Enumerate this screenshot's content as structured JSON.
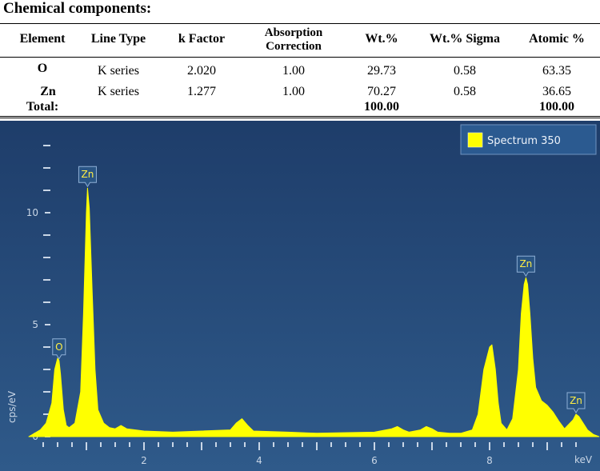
{
  "table": {
    "heading": "Chemical components:",
    "headers": {
      "element": "Element",
      "line_type": "Line Type",
      "k_factor": "k Factor",
      "absorption_1": "Absorption",
      "absorption_2": "Correction",
      "wt": "Wt.%",
      "wt_sigma": "Wt.% Sigma",
      "atomic": "Atomic %"
    },
    "rows": [
      {
        "element": "O",
        "line_type": "K series",
        "k_factor": "2.020",
        "absorption": "1.00",
        "wt": "29.73",
        "wt_sigma": "0.58",
        "atomic": "63.35"
      },
      {
        "element": "Zn",
        "line_type": "K series",
        "k_factor": "1.277",
        "absorption": "1.00",
        "wt": "70.27",
        "wt_sigma": "0.58",
        "atomic": "36.65"
      }
    ],
    "total": {
      "label": "Total:",
      "wt": "100.00",
      "atomic": "100.00"
    }
  },
  "colors": {
    "background_top": "#1e3d6a",
    "background_bottom": "#2f5a8a",
    "spectrum_fill": "#ffff00",
    "axis": "#c9d6e6",
    "peak_label": "#ffee44"
  },
  "chart_data": {
    "type": "area",
    "title": "",
    "xlabel": "keV",
    "ylabel": "cps/eV",
    "xlim": [
      0,
      9.5
    ],
    "ylim": [
      0,
      13.5
    ],
    "x_ticks": [
      2,
      4,
      6,
      8
    ],
    "y_ticks": [
      0,
      5,
      10
    ],
    "grid": false,
    "legend": {
      "position": "top-right",
      "entries": [
        "Spectrum 350"
      ]
    },
    "series": [
      {
        "name": "Spectrum 350",
        "x": [
          0.0,
          0.2,
          0.3,
          0.4,
          0.45,
          0.5,
          0.525,
          0.55,
          0.6,
          0.65,
          0.7,
          0.8,
          0.9,
          0.95,
          1.0,
          1.02,
          1.05,
          1.1,
          1.15,
          1.2,
          1.3,
          1.4,
          1.5,
          1.6,
          1.7,
          2.0,
          2.5,
          3.0,
          3.5,
          3.6,
          3.7,
          3.8,
          3.9,
          4.5,
          5.0,
          6.0,
          6.3,
          6.4,
          6.5,
          6.6,
          6.8,
          6.9,
          7.0,
          7.1,
          7.3,
          7.5,
          7.7,
          7.8,
          7.9,
          8.0,
          8.04,
          8.1,
          8.15,
          8.2,
          8.3,
          8.4,
          8.5,
          8.55,
          8.6,
          8.63,
          8.66,
          8.7,
          8.75,
          8.8,
          8.9,
          9.0,
          9.1,
          9.2,
          9.3,
          9.45,
          9.5,
          9.55,
          9.6,
          9.7,
          9.8,
          9.9
        ],
        "values": [
          0.0,
          0.3,
          0.6,
          1.5,
          3.0,
          3.5,
          3.4,
          2.8,
          1.2,
          0.5,
          0.4,
          0.6,
          2.0,
          5.5,
          10.0,
          11.1,
          10.2,
          6.5,
          3.0,
          1.2,
          0.6,
          0.4,
          0.35,
          0.5,
          0.35,
          0.25,
          0.2,
          0.25,
          0.3,
          0.6,
          0.8,
          0.5,
          0.25,
          0.2,
          0.15,
          0.2,
          0.35,
          0.45,
          0.3,
          0.2,
          0.3,
          0.45,
          0.35,
          0.2,
          0.15,
          0.15,
          0.3,
          1.0,
          3.0,
          4.0,
          4.1,
          3.0,
          1.5,
          0.6,
          0.3,
          0.8,
          3.0,
          5.5,
          6.8,
          7.1,
          6.8,
          5.5,
          3.5,
          2.2,
          1.6,
          1.4,
          1.1,
          0.7,
          0.35,
          0.75,
          1.0,
          0.9,
          0.7,
          0.3,
          0.1,
          0.0
        ]
      }
    ],
    "peak_labels": [
      {
        "label": "O",
        "x": 0.525,
        "y": 3.4
      },
      {
        "label": "Zn",
        "x": 1.02,
        "y": 11.1
      },
      {
        "label": "Zn",
        "x": 8.63,
        "y": 7.1
      },
      {
        "label": "Zn",
        "x": 9.5,
        "y": 1.0
      }
    ]
  }
}
